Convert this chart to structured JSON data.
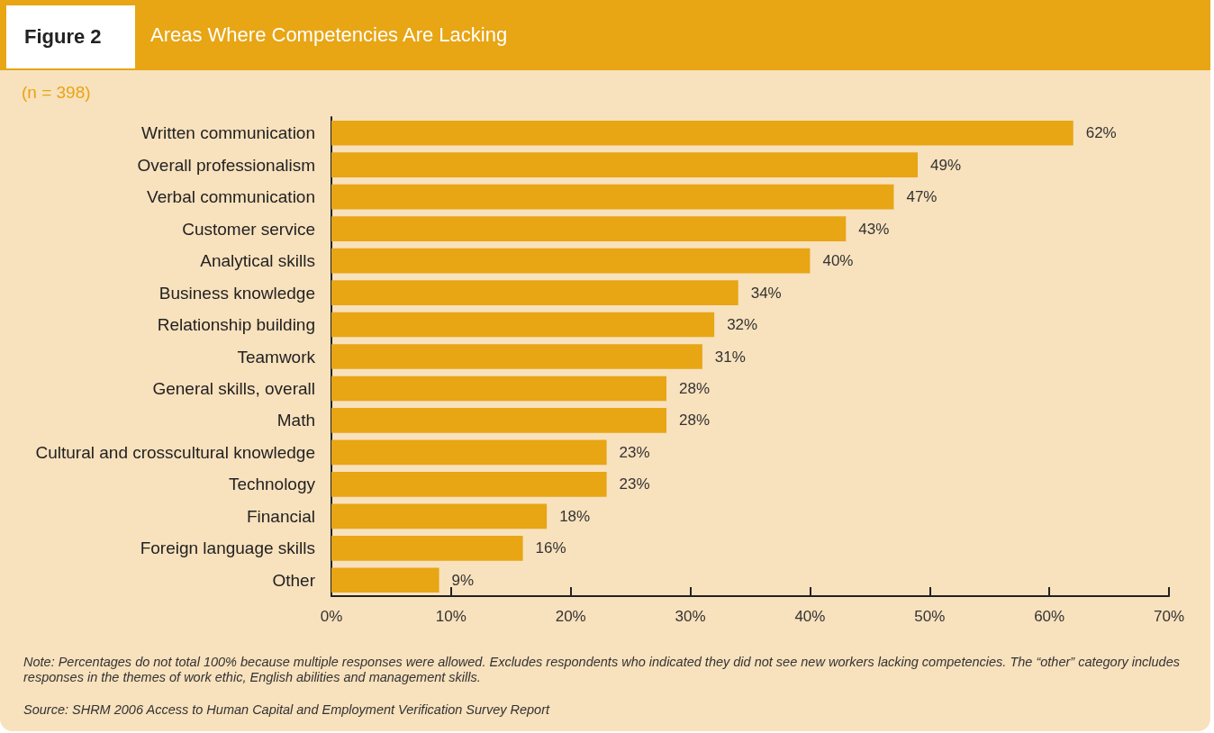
{
  "chart_data": {
    "type": "bar",
    "orientation": "horizontal",
    "title": "Areas Where Competencies Are Lacking",
    "subtitle": "(n = 398)",
    "categories": [
      "Written communication",
      "Overall professionalism",
      "Verbal communication",
      "Customer service",
      "Analytical skills",
      "Business knowledge",
      "Relationship building",
      "Teamwork",
      "General skills, overall",
      "Math",
      "Cultural and crosscultural knowledge",
      "Technology",
      "Financial",
      "Foreign language skills",
      "Other"
    ],
    "values": [
      62,
      49,
      47,
      43,
      40,
      34,
      32,
      31,
      28,
      28,
      23,
      23,
      18,
      16,
      9
    ],
    "value_labels": [
      "62%",
      "49%",
      "47%",
      "43%",
      "40%",
      "34%",
      "32%",
      "31%",
      "28%",
      "28%",
      "23%",
      "23%",
      "18%",
      "16%",
      "9%"
    ],
    "color": "#e8a514",
    "xlim": [
      0,
      70
    ],
    "xticks": [
      {
        "value": 0,
        "label": "0%"
      },
      {
        "value": 10,
        "label": "10%"
      },
      {
        "value": 20,
        "label": "20%"
      },
      {
        "value": 30,
        "label": "30%"
      },
      {
        "value": 40,
        "label": "40%"
      },
      {
        "value": 50,
        "label": "50%"
      },
      {
        "value": 60,
        "label": "60%"
      },
      {
        "value": 70,
        "label": "70%"
      }
    ],
    "grid": false,
    "annotations": [
      "Figure 2",
      "Note: Percentages do not total 100% because multiple responses were allowed. Excludes respondents who indicated they did not see new workers lacking competencies. The “other” category includes responses in the themes of work ethic, English abilities and management skills.",
      "Source: SHRM 2006 Access to Human Capital and Employment Verification Survey Report"
    ]
  }
}
